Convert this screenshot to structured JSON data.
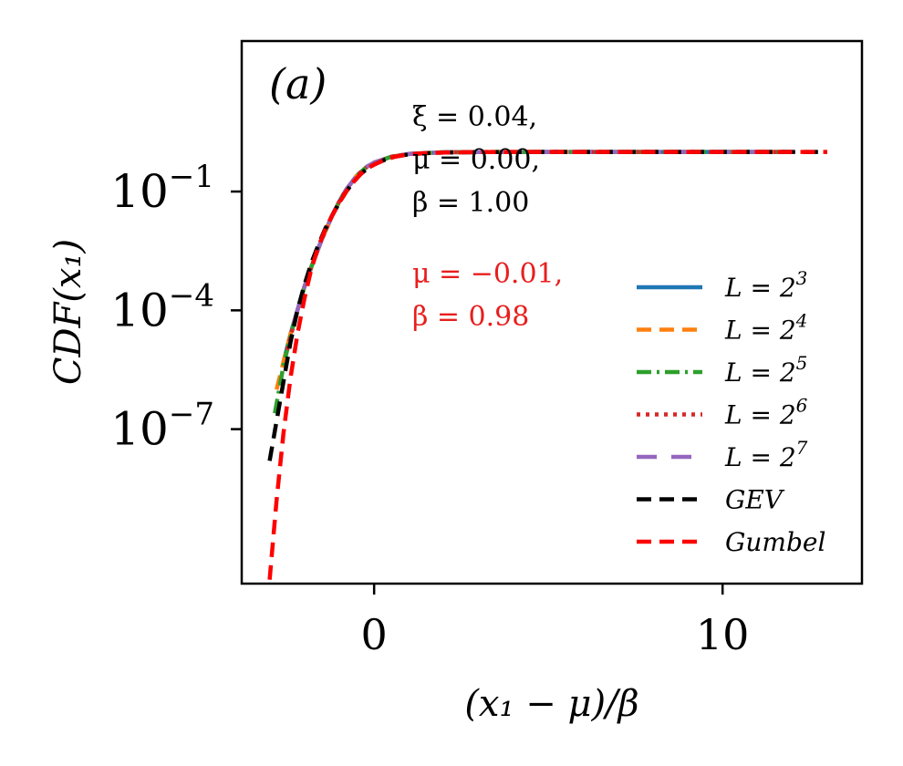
{
  "chart_data": {
    "type": "line",
    "panel_label": "(a)",
    "xlabel": "(x₁ − μ)/β",
    "ylabel": "CDF(x₁)",
    "x_scale": "linear",
    "y_scale": "log",
    "xlim": [
      -3.8,
      14.0
    ],
    "ylim_log10": [
      -10.9,
      2.8
    ],
    "xticks": [
      0,
      10
    ],
    "xtick_labels": [
      "0",
      "10"
    ],
    "yticks_log10": [
      -1,
      -4,
      -7
    ],
    "ytick_base": "10",
    "ytick_exponents": [
      "−1",
      "−4",
      "−7"
    ],
    "grid": false,
    "legend_position": "center-right",
    "annotations": {
      "gev_params": [
        "ξ = 0.04,",
        "μ = 0.00,",
        "β = 1.00"
      ],
      "gumbel_params": [
        "μ = −0.01,",
        "β = 0.98"
      ]
    },
    "series": [
      {
        "name": "L = 2^3",
        "label_main": "L = 2",
        "label_exp": "3",
        "color": "#1f77b4",
        "style": "solid",
        "x": [
          -2.6,
          -2.4,
          -2.2,
          -2.0,
          -1.8,
          -1.5,
          -1.2,
          -1.0,
          -0.8,
          -0.5,
          -0.2,
          0.0,
          0.5,
          1.0,
          2.0,
          3.0,
          5.0,
          8.0,
          12.0
        ],
        "log10y": [
          -5.3,
          -4.6,
          -4.0,
          -3.4,
          -2.9,
          -2.2,
          -1.6,
          -1.25,
          -0.95,
          -0.6,
          -0.37,
          -0.27,
          -0.12,
          -0.05,
          -0.01,
          -0.003,
          0.0,
          0.0,
          0.0
        ]
      },
      {
        "name": "L = 2^4",
        "label_main": "L = 2",
        "label_exp": "4",
        "color": "#ff7f0e",
        "style": "dashed",
        "x": [
          -2.8,
          -2.6,
          -2.4,
          -2.2,
          -2.0,
          -1.8,
          -1.5,
          -1.2,
          -1.0,
          -0.8,
          -0.5,
          -0.2,
          0.0,
          0.5,
          1.0,
          2.0,
          3.0,
          5.0,
          8.0,
          12.0
        ],
        "log10y": [
          -6.0,
          -5.3,
          -4.6,
          -4.0,
          -3.4,
          -2.9,
          -2.2,
          -1.6,
          -1.25,
          -0.95,
          -0.6,
          -0.37,
          -0.27,
          -0.12,
          -0.05,
          -0.01,
          -0.003,
          0.0,
          0.0,
          0.0
        ]
      },
      {
        "name": "L = 2^5",
        "label_main": "L = 2",
        "label_exp": "5",
        "color": "#2ca02c",
        "style": "dashdot",
        "x": [
          -2.85,
          -2.6,
          -2.4,
          -2.2,
          -2.0,
          -1.8,
          -1.5,
          -1.2,
          -1.0,
          -0.8,
          -0.5,
          -0.2,
          0.0,
          0.5,
          1.0,
          2.0,
          3.0,
          5.0,
          8.0,
          12.0
        ],
        "log10y": [
          -6.6,
          -5.4,
          -4.65,
          -4.0,
          -3.4,
          -2.9,
          -2.2,
          -1.6,
          -1.25,
          -0.95,
          -0.6,
          -0.37,
          -0.27,
          -0.12,
          -0.05,
          -0.01,
          -0.003,
          0.0,
          0.0,
          0.0
        ]
      },
      {
        "name": "L = 2^6",
        "label_main": "L = 2",
        "label_exp": "6",
        "color": "#d62728",
        "style": "dotted",
        "x": [
          -2.5,
          -2.2,
          -2.0,
          -1.8,
          -1.5,
          -1.2,
          -1.0,
          -0.8,
          -0.5,
          -0.2,
          0.0,
          0.5,
          1.0,
          2.0,
          3.0,
          5.0,
          8.0,
          12.0
        ],
        "log10y": [
          -5.0,
          -4.0,
          -3.4,
          -2.9,
          -2.2,
          -1.6,
          -1.25,
          -0.95,
          -0.6,
          -0.37,
          -0.27,
          -0.12,
          -0.05,
          -0.01,
          -0.003,
          0.0,
          0.0,
          0.0
        ]
      },
      {
        "name": "L = 2^7",
        "label_main": "L = 2",
        "label_exp": "7",
        "color": "#9467bd",
        "style": "dashed-long",
        "x": [
          -2.3,
          -2.1,
          -2.0,
          -1.8,
          -1.5,
          -1.2,
          -1.0,
          -0.8,
          -0.5,
          -0.2,
          0.0,
          0.5,
          1.0,
          2.0,
          3.0,
          5.0,
          8.0,
          12.0
        ],
        "log10y": [
          -4.3,
          -3.7,
          -3.4,
          -2.9,
          -2.2,
          -1.6,
          -1.25,
          -0.95,
          -0.6,
          -0.37,
          -0.27,
          -0.12,
          -0.05,
          -0.01,
          -0.003,
          0.0,
          0.0,
          0.0
        ]
      },
      {
        "name": "GEV",
        "label_main": "GEV",
        "label_exp": "",
        "color": "#000000",
        "style": "dashed",
        "x": [
          -3.0,
          -2.8,
          -2.6,
          -2.4,
          -2.2,
          -2.0,
          -1.8,
          -1.6,
          -1.4,
          -1.2,
          -1.0,
          -0.8,
          -0.6,
          -0.4,
          -0.2,
          0.0,
          0.3,
          0.6,
          1.0,
          1.5,
          2.0,
          3.0,
          4.0,
          6.0,
          9.0,
          13.0
        ],
        "log10y": [
          -7.8,
          -6.8,
          -5.8,
          -4.8,
          -4.0,
          -3.35,
          -2.8,
          -2.35,
          -1.93,
          -1.6,
          -1.28,
          -1.0,
          -0.77,
          -0.57,
          -0.42,
          -0.32,
          -0.2,
          -0.12,
          -0.06,
          -0.03,
          -0.015,
          -0.005,
          -0.002,
          0.0,
          0.0,
          0.0
        ]
      },
      {
        "name": "Gumbel",
        "label_main": "Gumbel",
        "label_exp": "",
        "color": "#ff0000",
        "style": "dashed",
        "x": [
          -3.0,
          -2.8,
          -2.6,
          -2.4,
          -2.2,
          -2.0,
          -1.8,
          -1.6,
          -1.4,
          -1.2,
          -1.0,
          -0.8,
          -0.6,
          -0.4,
          -0.2,
          0.0,
          0.3,
          0.6,
          1.0,
          1.5,
          2.0,
          3.0,
          4.0,
          6.0,
          9.0,
          13.0
        ],
        "log10y": [
          -10.8,
          -8.8,
          -7.1,
          -5.7,
          -4.6,
          -3.7,
          -2.95,
          -2.4,
          -1.95,
          -1.6,
          -1.28,
          -1.0,
          -0.77,
          -0.57,
          -0.42,
          -0.32,
          -0.2,
          -0.12,
          -0.06,
          -0.03,
          -0.015,
          -0.005,
          -0.002,
          0.0,
          0.0,
          0.0
        ]
      }
    ]
  }
}
